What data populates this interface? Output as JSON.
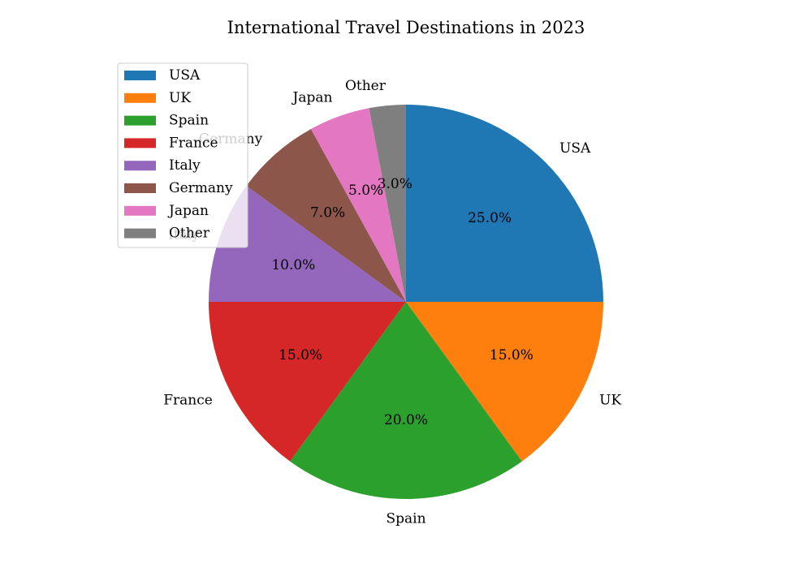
{
  "chart_data": {
    "type": "pie",
    "title": "International Travel Destinations in 2023",
    "categories": [
      "USA",
      "UK",
      "Spain",
      "France",
      "Italy",
      "Germany",
      "Japan",
      "Other"
    ],
    "values": [
      25.0,
      15.0,
      20.0,
      15.0,
      10.0,
      7.0,
      5.0,
      3.0
    ],
    "percent_labels": [
      "25.0%",
      "15.0%",
      "20.0%",
      "15.0%",
      "10.0%",
      "7.0%",
      "5.0%",
      "3.0%"
    ],
    "colors": [
      "#1f77b4",
      "#ff7f0e",
      "#2ca02c",
      "#d62728",
      "#9467bd",
      "#8c564b",
      "#e377c2",
      "#7f7f7f"
    ],
    "start_angle_deg": 90,
    "direction": "clockwise",
    "legend": {
      "placement": "upper-left",
      "entries": [
        "USA",
        "UK",
        "Spain",
        "France",
        "Italy",
        "Germany",
        "Japan",
        "Other"
      ]
    }
  }
}
